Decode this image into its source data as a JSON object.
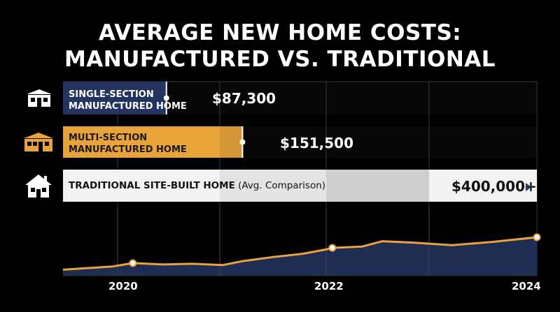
{
  "title": {
    "line1": "AVERAGE NEW HOME COSTS:",
    "line2": "MANUFACTURED VS. TRADITIONAL"
  },
  "chart_data": {
    "type": "bar",
    "title": "AVERAGE NEW HOME COSTS: MANUFACTURED VS. TRADITIONAL",
    "bars": [
      {
        "label_line1": "SINGLE-SECTION",
        "label_line2": "MANUFACTURED HOME",
        "value": 87300,
        "value_label": "$87,300",
        "color": "#25345e",
        "icon": "single-section-home-icon"
      },
      {
        "label_line1": "MULTI-SECTION",
        "label_line2": "MANUFACTURED HOME",
        "value": 151500,
        "value_label": "$151,500",
        "color": "#e8a33b",
        "icon": "multi-section-home-icon"
      },
      {
        "label_line1": "TRADITIONAL SITE-BUILT HOME",
        "label_suffix": " (Avg. Comparison)",
        "value": 400000,
        "value_label": "$400,000+",
        "color": "#f2f2f2",
        "icon": "traditional-house-icon"
      }
    ],
    "trend": {
      "type": "area",
      "x_ticks": [
        "2020",
        "2022",
        "2024"
      ],
      "x_range": [
        2019.3,
        2024.05
      ],
      "points": [
        [
          2019.3,
          9
        ],
        [
          2019.8,
          14
        ],
        [
          2020.0,
          19
        ],
        [
          2020.3,
          17
        ],
        [
          2020.6,
          18
        ],
        [
          2020.9,
          16
        ],
        [
          2021.1,
          22
        ],
        [
          2021.4,
          28
        ],
        [
          2021.7,
          33
        ],
        [
          2021.95,
          40
        ],
        [
          2022.0,
          42
        ],
        [
          2022.3,
          44
        ],
        [
          2022.5,
          52
        ],
        [
          2022.8,
          50
        ],
        [
          2023.2,
          46
        ],
        [
          2023.6,
          51
        ],
        [
          2024.05,
          58
        ]
      ],
      "marked_points": [
        [
          2020.0,
          19
        ],
        [
          2022.0,
          42
        ],
        [
          2024.05,
          58
        ]
      ],
      "y_range": [
        0,
        100
      ],
      "fill_color": "#1f2d52",
      "line_color": "#e8a33b"
    },
    "grid": true
  }
}
